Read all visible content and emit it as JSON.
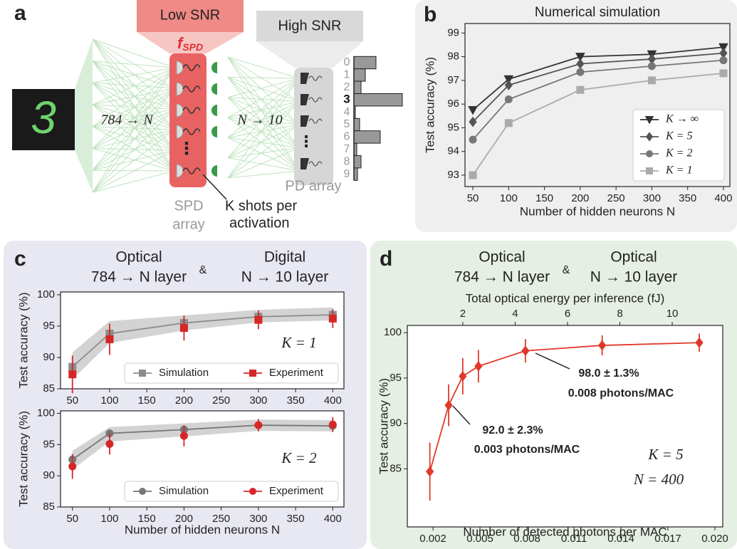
{
  "panel_labels": [
    "a",
    "b",
    "c",
    "d"
  ],
  "diagram": {
    "input_digit": "3",
    "low_snr": "Low SNR",
    "f_symbol": "f",
    "f_subscript": "SPD",
    "high_snr": "High SNR",
    "layer1": "784 → N",
    "layer2": "N → 10",
    "spd_array": [
      "SPD",
      "array"
    ],
    "shots": [
      "K shots per",
      "activation"
    ],
    "pd_array": "PD array",
    "histogram": {
      "labels": [
        "0",
        "1",
        "2",
        "3",
        "4",
        "5",
        "6",
        "7",
        "8",
        "9"
      ],
      "values": [
        31,
        16,
        10,
        68,
        2,
        8,
        37,
        4,
        10,
        5
      ]
    }
  },
  "panel_c_header": {
    "left_title": "Optical",
    "left_layer": "784 → N layer",
    "amp": "&",
    "right_title": "Digital",
    "right_layer": "N → 10 layer"
  },
  "panel_d_header": {
    "left_title": "Optical",
    "left_layer": "784 → N layer",
    "amp": "&",
    "right_title": "Optical",
    "right_layer": "N → 10 layer"
  },
  "chart_data": [
    {
      "type": "line",
      "title": "Numerical simulation",
      "xlabel": "Number of hidden neurons N",
      "ylabel": "Test accuracy (%)",
      "x": [
        50,
        100,
        200,
        300,
        400
      ],
      "xlim": [
        39,
        409
      ],
      "xticks": [
        50,
        100,
        150,
        200,
        250,
        300,
        350,
        400
      ],
      "ylim": [
        92.52,
        99.4
      ],
      "yticks": [
        93,
        94,
        95,
        96,
        97,
        98,
        99
      ],
      "legend": "lower right",
      "series": [
        {
          "name": "K → ∞",
          "color": "#333333",
          "marker": "triangle-down",
          "values": [
            95.75,
            97.05,
            98.0,
            98.1,
            98.4
          ]
        },
        {
          "name": "K = 5",
          "color": "#555555",
          "marker": "diamond",
          "values": [
            95.25,
            96.8,
            97.7,
            97.9,
            98.15
          ]
        },
        {
          "name": "K = 2",
          "color": "#777777",
          "marker": "circle",
          "values": [
            94.5,
            96.2,
            97.35,
            97.6,
            97.85
          ]
        },
        {
          "name": "K = 1",
          "color": "#aaaaaa",
          "marker": "square",
          "values": [
            93.0,
            95.2,
            96.6,
            97.0,
            97.3
          ]
        }
      ]
    },
    {
      "type": "line",
      "ylabel": "Test accuracy (%)",
      "annotation": "K = 1",
      "x": [
        50,
        100,
        200,
        300,
        400
      ],
      "xlim": [
        34,
        415
      ],
      "xticks": [
        50,
        100,
        150,
        200,
        250,
        300,
        350,
        400
      ],
      "ylim": [
        85,
        100.45
      ],
      "yticks": [
        85,
        90,
        95,
        100
      ],
      "legend": "lower right",
      "series": [
        {
          "name": "Simulation",
          "color": "#8c8c8c",
          "marker": "square",
          "values": [
            88.5,
            93.8,
            95.5,
            96.5,
            96.8
          ],
          "band_lower": [
            86.5,
            92.3,
            94.3,
            95.6,
            95.9
          ],
          "band_upper": [
            90.8,
            95.8,
            96.7,
            97.6,
            98.0
          ]
        },
        {
          "name": "Experiment",
          "color": "#d62728",
          "marker": "square",
          "values": [
            87.3,
            92.9,
            94.7,
            96.0,
            96.2
          ],
          "errors": [
            3,
            2.5,
            2,
            1.5,
            1.5
          ]
        }
      ]
    },
    {
      "type": "line",
      "xlabel": "Number of hidden neurons N",
      "ylabel": "Test accuracy (%)",
      "annotation": "K = 2",
      "x": [
        50,
        100,
        200,
        300,
        400
      ],
      "xlim": [
        34,
        415
      ],
      "xticks": [
        50,
        100,
        150,
        200,
        250,
        300,
        350,
        400
      ],
      "ylim": [
        85,
        100.4
      ],
      "yticks": [
        85,
        90,
        95,
        100
      ],
      "legend": "lower right",
      "series": [
        {
          "name": "Simulation",
          "color": "#777777",
          "marker": "circle",
          "values": [
            92.6,
            96.8,
            97.4,
            98.1,
            98.0
          ],
          "band_lower": [
            91,
            95.5,
            96.3,
            97.2,
            97.1
          ],
          "band_upper": [
            94,
            97.8,
            98.4,
            99,
            98.9
          ]
        },
        {
          "name": "Experiment",
          "color": "#d62728",
          "marker": "circle",
          "values": [
            91.5,
            95.1,
            96.4,
            98.1,
            98.2
          ],
          "errors": [
            2,
            1.7,
            1.7,
            1,
            1.2
          ]
        }
      ]
    },
    {
      "type": "line",
      "xlabel": "Number of detected photons per MAC",
      "x2label": "Total optical energy per inference (fJ)",
      "ylabel": "Test accuracy (%)",
      "x": [
        0.0018,
        0.003,
        0.0039,
        0.0049,
        0.0079,
        0.0128,
        0.019
      ],
      "xlim": [
        0.00036,
        0.0205
      ],
      "xticks": [
        0.002,
        0.005,
        0.008,
        0.011,
        0.014,
        0.017,
        {
          "value": 0.02,
          "label": "0.020"
        }
      ],
      "x2lim": [
        -0.12,
        11.93
      ],
      "x2ticks": [
        2,
        4,
        6,
        8,
        10
      ],
      "ylim": [
        78.6,
        100.8
      ],
      "yticks": [
        85,
        90,
        95,
        100
      ],
      "series": [
        {
          "color": "#e0392b",
          "marker": "diamond",
          "values": [
            84.7,
            92.0,
            95.2,
            96.3,
            98.0,
            98.6,
            98.9
          ],
          "errors": [
            3.2,
            2.3,
            2,
            1.8,
            1.3,
            1.1,
            1.0
          ]
        }
      ],
      "annotations": [
        "98.0 ± 1.3%",
        "0.008 photons/MAC",
        "92.0 ± 2.3%",
        "0.003 photons/MAC",
        "K = 5",
        "N = 400"
      ]
    }
  ]
}
